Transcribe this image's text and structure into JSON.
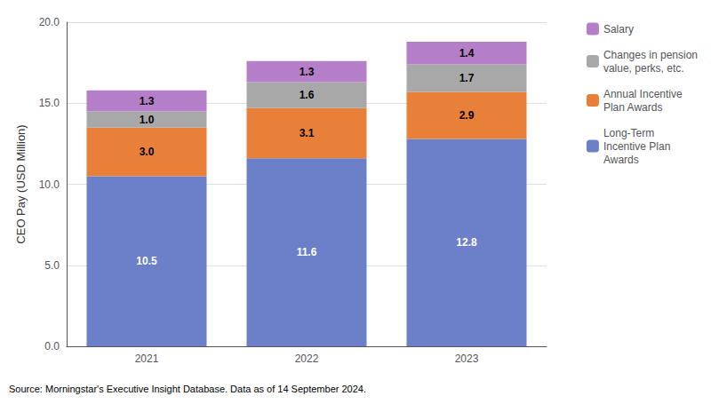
{
  "chart_data": {
    "type": "bar",
    "stacked": true,
    "data_labels": true,
    "grid": true,
    "legend": "right",
    "ylabel": "CEO Pay (USD Million)",
    "source": "Source: Morningstar's Executive Insight Database. Data as of 14 September 2024.",
    "categories": [
      "2021",
      "2022",
      "2023"
    ],
    "series": [
      {
        "name": "Long-Term\nIncentive Plan\nAwards",
        "color": "#6b80c8",
        "values": [
          10.5,
          11.6,
          12.8
        ]
      },
      {
        "name": "Annual Incentive\nPlan Awards",
        "color": "#e8803a",
        "values": [
          3.0,
          3.1,
          2.9
        ],
        "value_labels": [
          "3.0",
          "3.1",
          "2.9"
        ]
      },
      {
        "name": "Changes in pension\nvalue, perks, etc.",
        "color": "#a8a8a8",
        "values": [
          1.0,
          1.6,
          1.7
        ],
        "value_labels": [
          "1.0",
          "1.6",
          "1.7"
        ]
      },
      {
        "name": "Salary",
        "color": "#b57ec8",
        "values": [
          1.3,
          1.3,
          1.4
        ]
      }
    ],
    "ylim": [
      0,
      20
    ],
    "yticks": [
      {
        "value": 0,
        "label": "0.0"
      },
      {
        "value": 5,
        "label": "5.0"
      },
      {
        "value": 10,
        "label": "10.0"
      },
      {
        "value": 15,
        "label": "15.0"
      },
      {
        "value": 20,
        "label": "20.0"
      }
    ]
  }
}
